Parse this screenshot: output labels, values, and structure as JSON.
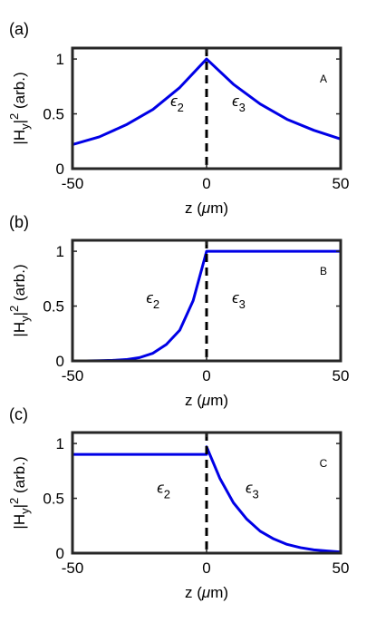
{
  "colors": {
    "curve": "#0000e6",
    "axes": "#262626",
    "divider": "#000000"
  },
  "chart_data": [
    {
      "type": "line",
      "panel_label": "(a)",
      "corner_label": "A",
      "xlabel": "z (μm)",
      "ylabel": "|H_y|² (arb.)",
      "ylabel_parts": {
        "base": "|H",
        "sub": "y",
        "mid": "|",
        "sup": "2",
        "rest": " (arb.)"
      },
      "xlabel_parts": {
        "pre": "z (",
        "mu": "μ",
        "post": "m)"
      },
      "xlim": [
        -50,
        50
      ],
      "ylim": [
        0,
        1.1
      ],
      "xticks": [
        -50,
        0,
        50
      ],
      "xtick_labels": [
        "-50",
        "0",
        "50"
      ],
      "yticks": [
        0,
        0.5,
        1
      ],
      "ytick_labels": [
        "0",
        "0.5",
        "1"
      ],
      "divider_x": 0,
      "regions": [
        {
          "symbol": "ϵ",
          "sub": "2",
          "x": -11,
          "y": 0.57
        },
        {
          "symbol": "ϵ",
          "sub": "3",
          "x": 12,
          "y": 0.57
        }
      ],
      "series": [
        {
          "x": [
            -50,
            -40,
            -30,
            -20,
            -10,
            0,
            10,
            20,
            30,
            40,
            50
          ],
          "y": [
            0.22,
            0.29,
            0.4,
            0.54,
            0.74,
            1.0,
            0.77,
            0.59,
            0.45,
            0.35,
            0.27
          ]
        }
      ]
    },
    {
      "type": "line",
      "panel_label": "(b)",
      "corner_label": "B",
      "xlabel": "z (μm)",
      "ylabel": "|H_y|² (arb.)",
      "ylabel_parts": {
        "base": "|H",
        "sub": "y",
        "mid": "|",
        "sup": "2",
        "rest": " (arb.)"
      },
      "xlabel_parts": {
        "pre": "z (",
        "mu": "μ",
        "post": "m)"
      },
      "xlim": [
        -50,
        50
      ],
      "ylim": [
        0,
        1.1
      ],
      "xticks": [
        -50,
        0,
        50
      ],
      "xtick_labels": [
        "-50",
        "0",
        "50"
      ],
      "yticks": [
        0,
        0.5,
        1
      ],
      "ytick_labels": [
        "0",
        "0.5",
        "1"
      ],
      "divider_x": 0,
      "regions": [
        {
          "symbol": "ϵ",
          "sub": "2",
          "x": -20,
          "y": 0.53
        },
        {
          "symbol": "ϵ",
          "sub": "3",
          "x": 12,
          "y": 0.53
        }
      ],
      "series": [
        {
          "x": [
            -50,
            -45,
            -40,
            -35,
            -30,
            -25,
            -20,
            -15,
            -10,
            -5,
            0,
            0.01,
            10,
            20,
            30,
            40,
            50
          ],
          "y": [
            0.0,
            0.0,
            0.002,
            0.005,
            0.012,
            0.03,
            0.07,
            0.15,
            0.28,
            0.55,
            1.0,
            1.0,
            1.0,
            1.0,
            1.0,
            1.0,
            1.0
          ]
        }
      ]
    },
    {
      "type": "line",
      "panel_label": "(c)",
      "corner_label": "C",
      "xlabel": "z (μm)",
      "ylabel": "|H_y|² (arb.)",
      "ylabel_parts": {
        "base": "|H",
        "sub": "y",
        "mid": "|",
        "sup": "2",
        "rest": " (arb.)"
      },
      "xlabel_parts": {
        "pre": "z (",
        "mu": "μ",
        "post": "m)"
      },
      "xlim": [
        -50,
        50
      ],
      "ylim": [
        0,
        1.1
      ],
      "xticks": [
        -50,
        0,
        50
      ],
      "xtick_labels": [
        "-50",
        "0",
        "50"
      ],
      "yticks": [
        0,
        0.5,
        1
      ],
      "ytick_labels": [
        "0",
        "0.5",
        "1"
      ],
      "divider_x": 0,
      "regions": [
        {
          "symbol": "ϵ",
          "sub": "2",
          "x": -16,
          "y": 0.55
        },
        {
          "symbol": "ϵ",
          "sub": "3",
          "x": 17,
          "y": 0.55
        }
      ],
      "series": [
        {
          "x": [
            -50,
            -20,
            -0.01,
            0,
            5,
            10,
            15,
            20,
            25,
            30,
            35,
            40,
            45,
            50
          ],
          "y": [
            0.9,
            0.9,
            0.9,
            0.97,
            0.68,
            0.46,
            0.31,
            0.2,
            0.13,
            0.08,
            0.05,
            0.03,
            0.02,
            0.01
          ]
        }
      ]
    }
  ]
}
